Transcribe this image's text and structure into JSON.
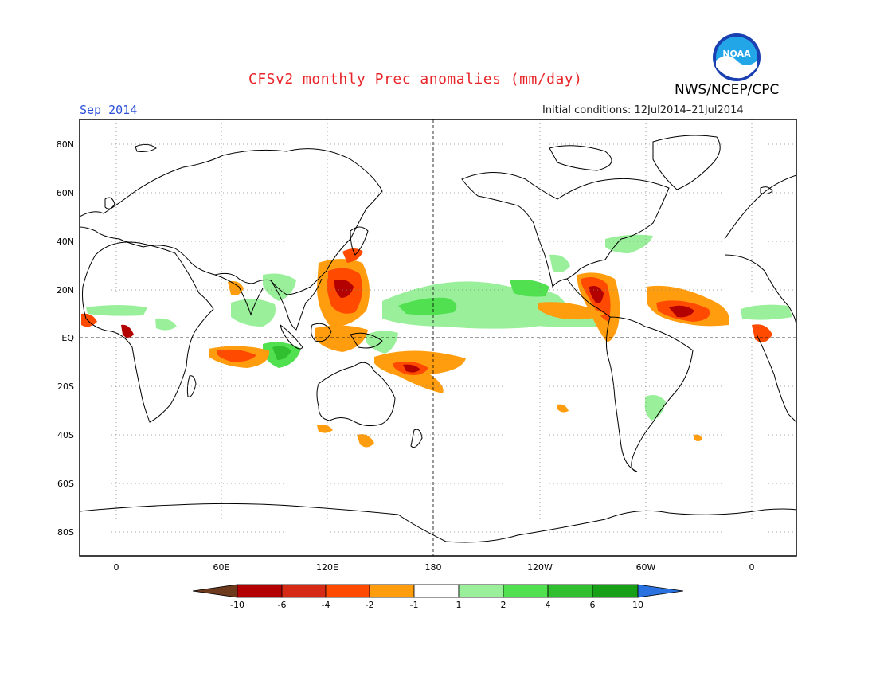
{
  "header": {
    "title": "CFSv2 monthly Prec anomalies (mm/day)",
    "agency": "NWS/NCEP/CPC",
    "valid_month": "Sep 2014",
    "initial_conditions": "Initial conditions: 12Jul2014–21Jul2014",
    "logo_text": "NOAA"
  },
  "map": {
    "projection": "cylindrical equidistant",
    "lon_range": [
      -20,
      380
    ],
    "lat_range": [
      -90,
      90
    ],
    "lat_labels": [
      "80N",
      "60N",
      "40N",
      "20N",
      "EQ",
      "20S",
      "40S",
      "60S",
      "80S"
    ],
    "lon_labels": [
      "0",
      "60E",
      "120E",
      "180",
      "120W",
      "60W",
      "0"
    ],
    "grid": "dotted",
    "reference_lines": [
      "equator",
      "dateline"
    ]
  },
  "colorbar": {
    "labels": [
      "-10",
      "-6",
      "-4",
      "-2",
      "-1",
      "1",
      "2",
      "4",
      "6",
      "10"
    ],
    "colors": [
      "#6e3a1e",
      "#b30000",
      "#d42a16",
      "#ff4a00",
      "#ff9d0f",
      "#ffffff",
      "#9af09a",
      "#50e050",
      "#2fbf2f",
      "#17a017",
      "#2a72e0"
    ]
  },
  "colors": {
    "title": "#e8262a",
    "valid_month": "#2b4fd8",
    "dry_light": "#ff9d0f",
    "dry_mid": "#ff4a00",
    "dry_strong": "#b30000",
    "wet_light": "#9af09a",
    "wet_mid": "#50e050",
    "wet_strong": "#2fbf2f"
  }
}
